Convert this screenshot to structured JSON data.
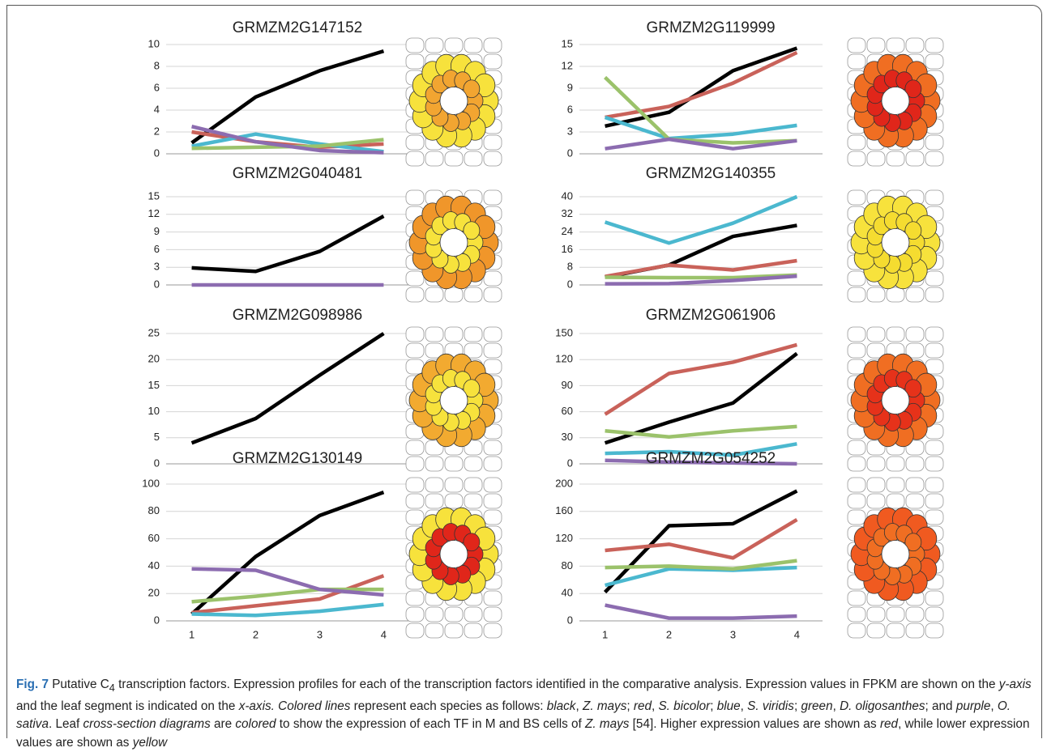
{
  "chart_data": [
    {
      "type": "line",
      "title": "GRMZM2G147152",
      "x": [
        1,
        2,
        3,
        4
      ],
      "xlim": [
        0.6,
        4.4
      ],
      "ylim": [
        0,
        10
      ],
      "yticks": [
        0,
        2,
        4,
        6,
        8,
        10
      ],
      "grid": true,
      "leaf_colors": [
        "#f7e23c",
        "#f2a531"
      ],
      "series": [
        {
          "color": "#000000",
          "values": [
            1,
            5.2,
            7.6,
            9.4
          ]
        },
        {
          "color": "#c9625a",
          "values": [
            2,
            1.1,
            0.6,
            0.9
          ]
        },
        {
          "color": "#4bb8cf",
          "values": [
            0.7,
            1.8,
            0.9,
            0.2
          ]
        },
        {
          "color": "#9bc26b",
          "values": [
            0.5,
            0.6,
            0.7,
            1.3
          ]
        },
        {
          "color": "#8c6cb0",
          "values": [
            2.5,
            1.1,
            0.3,
            0.1
          ]
        }
      ]
    },
    {
      "type": "line",
      "title": "GRMZM2G119999",
      "x": [
        1,
        2,
        3,
        4
      ],
      "xlim": [
        0.6,
        4.4
      ],
      "ylim": [
        0,
        15
      ],
      "yticks": [
        0,
        3,
        6,
        9,
        12,
        15
      ],
      "grid": true,
      "leaf_colors": [
        "#f06e22",
        "#e0261a"
      ],
      "series": [
        {
          "color": "#000000",
          "values": [
            3.8,
            5.7,
            11.4,
            14.5
          ]
        },
        {
          "color": "#c9625a",
          "values": [
            5,
            6.5,
            9.7,
            13.9
          ]
        },
        {
          "color": "#4bb8cf",
          "values": [
            5,
            2.1,
            2.7,
            3.9
          ]
        },
        {
          "color": "#9bc26b",
          "values": [
            10.5,
            2,
            1.5,
            1.8
          ]
        },
        {
          "color": "#8c6cb0",
          "values": [
            0.7,
            2,
            0.7,
            1.8
          ]
        }
      ]
    },
    {
      "type": "line",
      "title": "GRMZM2G040481",
      "x": [
        1,
        2,
        3,
        4
      ],
      "xlim": [
        0.6,
        4.4
      ],
      "ylim": [
        0,
        15
      ],
      "yticks": [
        0,
        3,
        6,
        9,
        12,
        15
      ],
      "grid": true,
      "leaf_colors": [
        "#f0962a",
        "#f7e23c"
      ],
      "series": [
        {
          "color": "#000000",
          "values": [
            2.9,
            2.3,
            5.7,
            11.7
          ]
        },
        {
          "color": "#8c6cb0",
          "values": [
            0,
            0,
            0,
            0
          ]
        }
      ]
    },
    {
      "type": "line",
      "title": "GRMZM2G140355",
      "x": [
        1,
        2,
        3,
        4
      ],
      "xlim": [
        0.6,
        4.4
      ],
      "ylim": [
        0,
        40
      ],
      "yticks": [
        0,
        8,
        16,
        24,
        32,
        40
      ],
      "grid": true,
      "leaf_colors": [
        "#f7e23c",
        "#f5dc30"
      ],
      "series": [
        {
          "color": "#000000",
          "values": [
            3.5,
            9,
            22,
            27
          ]
        },
        {
          "color": "#c9625a",
          "values": [
            3.8,
            9,
            6.8,
            11
          ]
        },
        {
          "color": "#4bb8cf",
          "values": [
            28.5,
            19,
            28,
            40
          ]
        },
        {
          "color": "#9bc26b",
          "values": [
            3.5,
            3.3,
            3.3,
            4.5
          ]
        },
        {
          "color": "#8c6cb0",
          "values": [
            0.5,
            0.6,
            2,
            4
          ]
        }
      ]
    },
    {
      "type": "line",
      "title": "GRMZM2G098986",
      "x": [
        1,
        2,
        3,
        4
      ],
      "xlim": [
        0.6,
        4.4
      ],
      "ylim": [
        0,
        25
      ],
      "yticks": [
        0,
        5,
        10,
        15,
        20,
        25
      ],
      "grid": true,
      "leaf_colors": [
        "#f2aa30",
        "#f7e23c"
      ],
      "series": [
        {
          "color": "#000000",
          "values": [
            4,
            8.7,
            17,
            25
          ]
        }
      ]
    },
    {
      "type": "line",
      "title": "GRMZM2G061906",
      "x": [
        1,
        2,
        3,
        4
      ],
      "xlim": [
        0.6,
        4.4
      ],
      "ylim": [
        0,
        150
      ],
      "yticks": [
        0,
        30,
        60,
        90,
        120,
        150
      ],
      "grid": true,
      "leaf_colors": [
        "#f06e22",
        "#e6321a"
      ],
      "series": [
        {
          "color": "#000000",
          "values": [
            24,
            48,
            70,
            127
          ]
        },
        {
          "color": "#c9625a",
          "values": [
            57,
            104,
            117,
            137
          ]
        },
        {
          "color": "#4bb8cf",
          "values": [
            12,
            14,
            10,
            23
          ]
        },
        {
          "color": "#9bc26b",
          "values": [
            38,
            31,
            38,
            43
          ]
        },
        {
          "color": "#8c6cb0",
          "values": [
            4,
            2,
            1,
            0
          ]
        }
      ]
    },
    {
      "type": "line",
      "title": "GRMZM2G130149",
      "x": [
        1,
        2,
        3,
        4
      ],
      "xlim": [
        0.6,
        4.4
      ],
      "ylim": [
        0,
        100
      ],
      "yticks": [
        0,
        20,
        40,
        60,
        80,
        100
      ],
      "grid": true,
      "xticks": [
        1,
        2,
        3,
        4
      ],
      "leaf_colors": [
        "#f7e23c",
        "#e0261a"
      ],
      "series": [
        {
          "color": "#000000",
          "values": [
            5,
            47,
            77,
            94
          ]
        },
        {
          "color": "#c9625a",
          "values": [
            6,
            11,
            16,
            33
          ]
        },
        {
          "color": "#4bb8cf",
          "values": [
            5,
            4,
            7,
            12
          ]
        },
        {
          "color": "#9bc26b",
          "values": [
            14,
            18,
            23,
            23
          ]
        },
        {
          "color": "#8c6cb0",
          "values": [
            38,
            37,
            23,
            19
          ]
        }
      ]
    },
    {
      "type": "line",
      "title": "GRMZM2G054252",
      "x": [
        1,
        2,
        3,
        4
      ],
      "xlim": [
        0.6,
        4.4
      ],
      "ylim": [
        0,
        200
      ],
      "yticks": [
        0,
        40,
        80,
        120,
        160,
        200
      ],
      "grid": true,
      "xticks": [
        1,
        2,
        3,
        4
      ],
      "leaf_colors": [
        "#f05a20",
        "#f06e22"
      ],
      "series": [
        {
          "color": "#000000",
          "values": [
            42,
            139,
            142,
            190
          ]
        },
        {
          "color": "#c9625a",
          "values": [
            103,
            112,
            92,
            148
          ]
        },
        {
          "color": "#4bb8cf",
          "values": [
            52,
            76,
            74,
            78
          ]
        },
        {
          "color": "#9bc26b",
          "values": [
            78,
            80,
            76,
            88
          ]
        },
        {
          "color": "#8c6cb0",
          "values": [
            23,
            4,
            4,
            7
          ]
        }
      ]
    }
  ],
  "caption": [
    {
      "text": "Fig. 7",
      "style": "bold"
    },
    {
      "text": " Putative C"
    },
    {
      "text": "4",
      "style": "sub"
    },
    {
      "text": " transcription factors. Expression profiles for each of the transcription factors identified in the comparative analysis. Expression values in FPKM are shown on the "
    },
    {
      "text": "y-axis",
      "style": "italic"
    },
    {
      "text": " and the leaf segment is indicated on the "
    },
    {
      "text": "x-axis.",
      "style": "italic"
    },
    {
      "text": " "
    },
    {
      "text": "Colored lines",
      "style": "italic"
    },
    {
      "text": " represent each species as follows: "
    },
    {
      "text": "black",
      "style": "italic"
    },
    {
      "text": ", "
    },
    {
      "text": "Z. mays",
      "style": "italic"
    },
    {
      "text": "; "
    },
    {
      "text": "red",
      "style": "italic"
    },
    {
      "text": ", "
    },
    {
      "text": "S. bicolor",
      "style": "italic"
    },
    {
      "text": "; "
    },
    {
      "text": "blue",
      "style": "italic"
    },
    {
      "text": ", "
    },
    {
      "text": "S. viridis",
      "style": "italic"
    },
    {
      "text": "; "
    },
    {
      "text": "green",
      "style": "italic"
    },
    {
      "text": ", "
    },
    {
      "text": "D. oligosanthes",
      "style": "italic"
    },
    {
      "text": "; and "
    },
    {
      "text": "purple",
      "style": "italic"
    },
    {
      "text": ", "
    },
    {
      "text": "O. sativa",
      "style": "italic"
    },
    {
      "text": ". Leaf "
    },
    {
      "text": "cross-section diagrams",
      "style": "italic"
    },
    {
      "text": " are "
    },
    {
      "text": "colored",
      "style": "italic"
    },
    {
      "text": " to show the expression of each TF in M and BS cells of "
    },
    {
      "text": "Z. mays",
      "style": "italic"
    },
    {
      "text": " [54]. Higher expression values are shown as "
    },
    {
      "text": "red",
      "style": "italic"
    },
    {
      "text": ", while lower expression values are shown as "
    },
    {
      "text": "yellow",
      "style": "italic"
    }
  ]
}
